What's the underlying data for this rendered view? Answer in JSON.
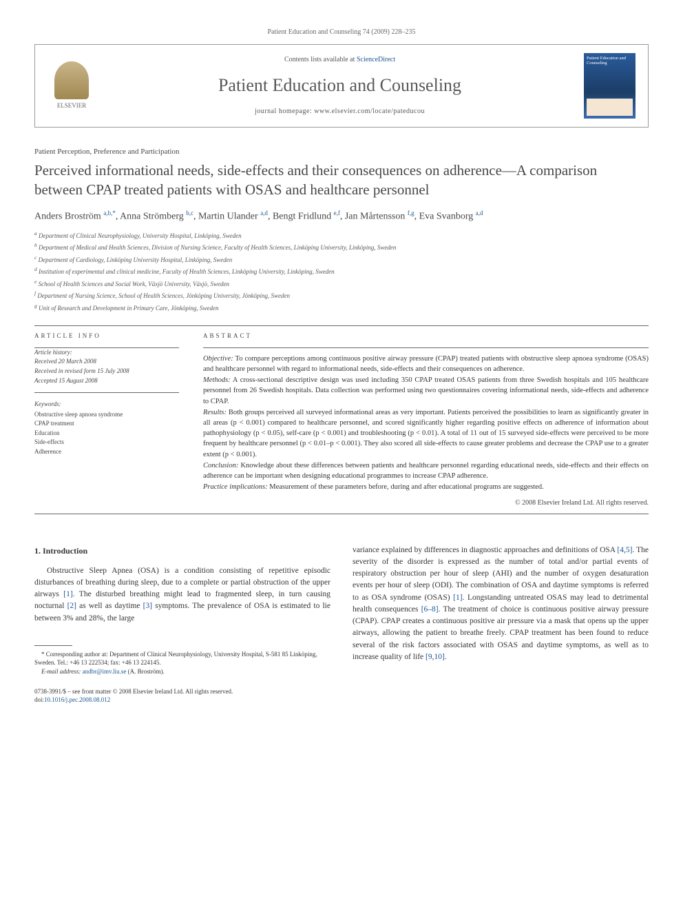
{
  "running_head": "Patient Education and Counseling 74 (2009) 228–235",
  "header": {
    "publisher": "ELSEVIER",
    "contents_pre": "Contents lists available at ",
    "contents_link": "ScienceDirect",
    "journal": "Patient Education and Counseling",
    "homepage_label": "journal homepage: www.elsevier.com/locate/pateducou",
    "cover_title": "Patient Education and Counseling"
  },
  "section_label": "Patient Perception, Preference and Participation",
  "title": "Perceived informational needs, side-effects and their consequences on adherence—A comparison between CPAP treated patients with OSAS and healthcare personnel",
  "authors_html": "Anders Broström <sup>a,b,*</sup>, Anna Strömberg <sup>b,c</sup>, Martin Ulander <sup>a,d</sup>, Bengt Fridlund <sup>e,f</sup>, Jan Mårtensson <sup>f,g</sup>, Eva Svanborg <sup>a,d</sup>",
  "affiliations": [
    "a Department of Clinical Neurophysiology, University Hospital, Linköping, Sweden",
    "b Department of Medical and Health Sciences, Division of Nursing Science, Faculty of Health Sciences, Linköping University, Linköping, Sweden",
    "c Department of Cardiology, Linköping University Hospital, Linköping, Sweden",
    "d Institution of experimental and clinical medicine, Faculty of Health Sciences, Linköping University, Linköping, Sweden",
    "e School of Health Sciences and Social Work, Växjö University, Växjö, Sweden",
    "f Department of Nursing Science, School of Health Sciences, Jönköping University, Jönköping, Sweden",
    "g Unit of Research and Development in Primary Care, Jönköping, Sweden"
  ],
  "article_info": {
    "heading": "ARTICLE INFO",
    "history_label": "Article history:",
    "received": "Received 20 March 2008",
    "revised": "Received in revised form 15 July 2008",
    "accepted": "Accepted 15 August 2008",
    "kw_label": "Keywords:",
    "keywords": [
      "Obstructive sleep apnoea syndrome",
      "CPAP treatment",
      "Education",
      "Side-effects",
      "Adherence"
    ]
  },
  "abstract": {
    "heading": "ABSTRACT",
    "objective_label": "Objective:",
    "objective": " To compare perceptions among continuous positive airway pressure (CPAP) treated patients with obstructive sleep apnoea syndrome (OSAS) and healthcare personnel with regard to informational needs, side-effects and their consequences on adherence.",
    "methods_label": "Methods:",
    "methods": " A cross-sectional descriptive design was used including 350 CPAP treated OSAS patients from three Swedish hospitals and 105 healthcare personnel from 26 Swedish hospitals. Data collection was performed using two questionnaires covering informational needs, side-effects and adherence to CPAP.",
    "results_label": "Results:",
    "results": " Both groups perceived all surveyed informational areas as very important. Patients perceived the possibilities to learn as significantly greater in all areas (p < 0.001) compared to healthcare personnel, and scored significantly higher regarding positive effects on adherence of information about pathophysiology (p < 0.05), self-care (p < 0.001) and troubleshooting (p < 0.01). A total of 11 out of 15 surveyed side-effects were perceived to be more frequent by healthcare personnel (p < 0.01–p < 0.001). They also scored all side-effects to cause greater problems and decrease the CPAP use to a greater extent (p < 0.001).",
    "conclusion_label": "Conclusion:",
    "conclusion": " Knowledge about these differences between patients and healthcare personnel regarding educational needs, side-effects and their effects on adherence can be important when designing educational programmes to increase CPAP adherence.",
    "practice_label": "Practice implications:",
    "practice": " Measurement of these parameters before, during and after educational programs are suggested.",
    "copyright": "© 2008 Elsevier Ireland Ltd. All rights reserved."
  },
  "body": {
    "sec_number": "1.",
    "sec_title": " Introduction",
    "col1": "Obstructive Sleep Apnea (OSA) is a condition consisting of repetitive episodic disturbances of breathing during sleep, due to a complete or partial obstruction of the upper airways [1]. The disturbed breathing might lead to fragmented sleep, in turn causing nocturnal [2] as well as daytime [3] symptoms. The prevalence of OSA is estimated to lie between 3% and 28%, the large",
    "col2": "variance explained by differences in diagnostic approaches and definitions of OSA [4,5]. The severity of the disorder is expressed as the number of total and/or partial events of respiratory obstruction per hour of sleep (AHI) and the number of oxygen desaturation events per hour of sleep (ODI). The combination of OSA and daytime symptoms is referred to as OSA syndrome (OSAS) [1]. Longstanding untreated OSAS may lead to detrimental health consequences [6–8]. The treatment of choice is continuous positive airway pressure (CPAP). CPAP creates a continuous positive air pressure via a mask that opens up the upper airways, allowing the patient to breathe freely. CPAP treatment has been found to reduce several of the risk factors associated with OSAS and daytime symptoms, as well as to increase quality of life [9,10]."
  },
  "footnote": {
    "star": "* Corresponding author at: Department of Clinical Neurophysiology, University Hospital, S-581 85 Linköping, Sweden. Tel.: +46 13 222534; fax: +46 13 224145.",
    "email_label": "E-mail address: ",
    "email": "andbr@imv.liu.se",
    "email_post": " (A. Broström)."
  },
  "footer": {
    "l1": "0738-3991/$ – see front matter © 2008 Elsevier Ireland Ltd. All rights reserved.",
    "l2_pre": "doi:",
    "doi": "10.1016/j.pec.2008.08.012"
  },
  "colors": {
    "link": "#1a5490",
    "text": "#333333",
    "rule": "#666666"
  }
}
